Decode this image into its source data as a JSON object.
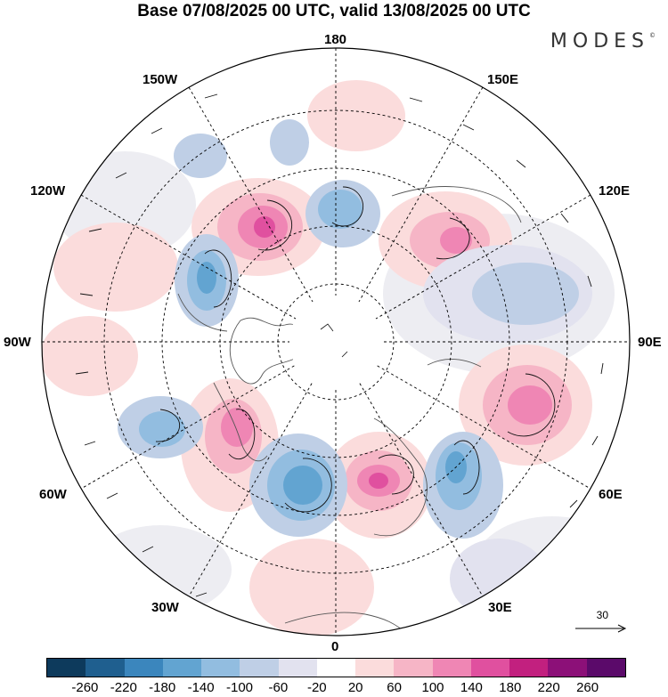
{
  "title": "Base 07/08/2025 00 UTC, valid 13/08/2025 00 UTC",
  "brand": "MODES",
  "brand_mark": "©",
  "longitude_labels": {
    "top": "180",
    "bottom": "0",
    "left": "90W",
    "right": "90E",
    "upper_left_1": "150W",
    "upper_left_2": "120W",
    "upper_right_1": "150E",
    "upper_right_2": "120E",
    "lower_left_1": "60W",
    "lower_left_2": "30W",
    "lower_right_1": "60E",
    "lower_right_2": "30E"
  },
  "vector_reference": "30",
  "colorbar": {
    "colors": [
      "#0d3a5c",
      "#1f5f8f",
      "#3b86bd",
      "#62a4d1",
      "#92bde0",
      "#bfcfe6",
      "#e2e2ef",
      "#ffffff",
      "#fbdcdc",
      "#f6b5c6",
      "#ef86b4",
      "#e0509f",
      "#c2207f",
      "#8c1078",
      "#5b0a6a"
    ],
    "ticks": [
      "-260",
      "-220",
      "-180",
      "-140",
      "-100",
      "-60",
      "-20",
      "20",
      "60",
      "100",
      "140",
      "180",
      "220",
      "260"
    ]
  },
  "anomalies": [
    {
      "name": "pink-center-bering",
      "value": 180
    },
    {
      "name": "pink-east-siberia",
      "value": 140
    },
    {
      "name": "pink-central-asia",
      "value": 160
    },
    {
      "name": "pink-scandinavia",
      "value": 180
    },
    {
      "name": "pink-greenland-west",
      "value": 160
    },
    {
      "name": "blue-alaska",
      "value": -140
    },
    {
      "name": "blue-beaufort",
      "value": -120
    },
    {
      "name": "blue-north-atlantic",
      "value": -160
    },
    {
      "name": "blue-labrador",
      "value": -120
    },
    {
      "name": "blue-russia",
      "value": -140
    },
    {
      "name": "blue-siberia",
      "value": -100
    }
  ]
}
